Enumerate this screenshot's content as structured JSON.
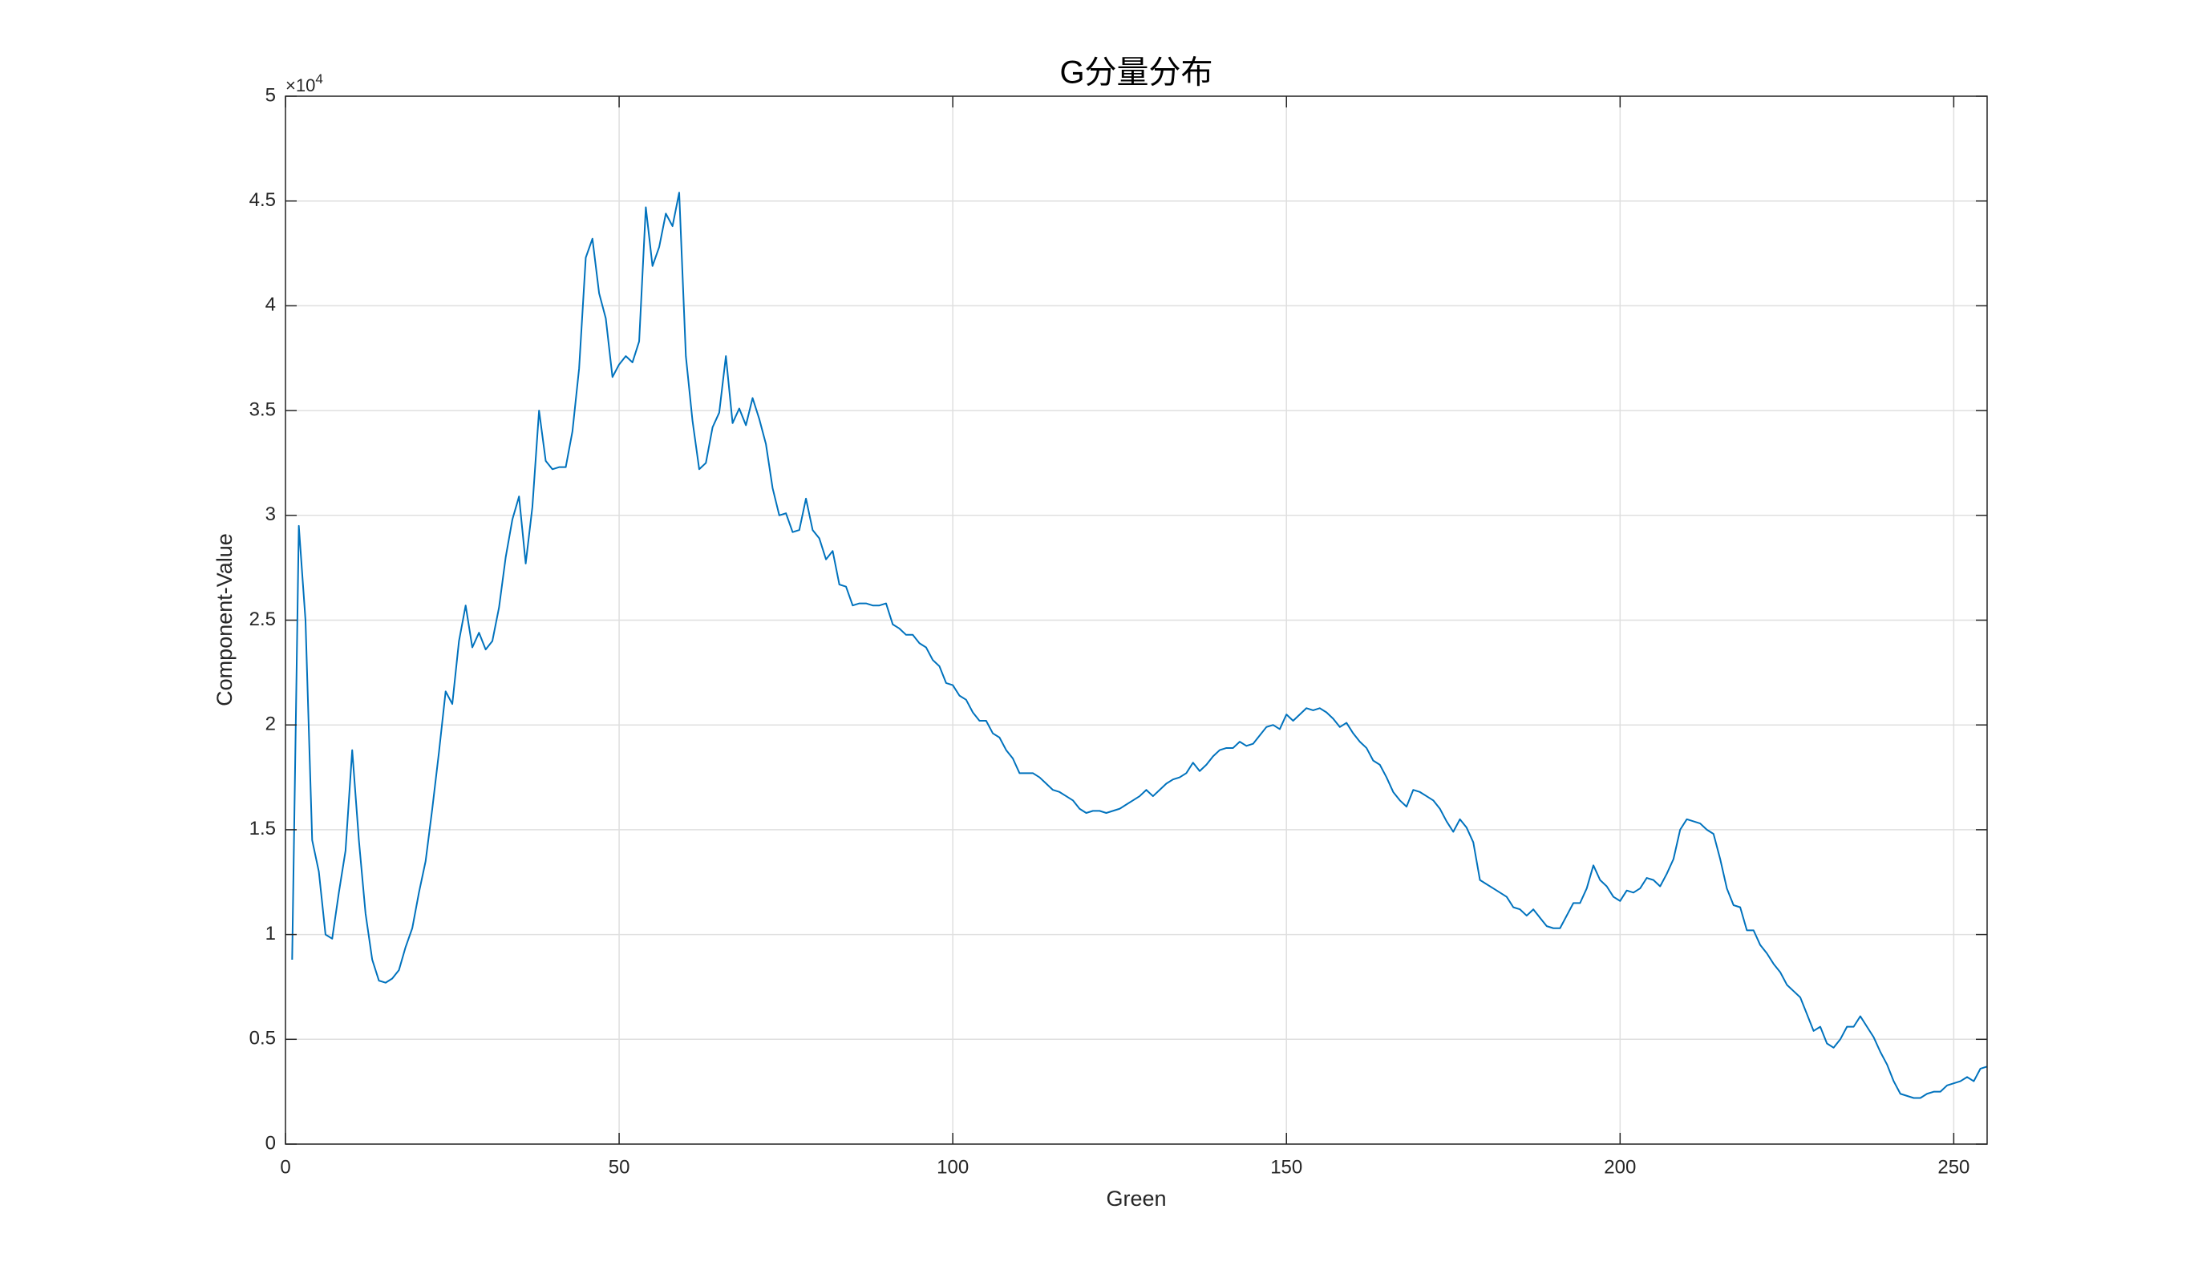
{
  "chart_data": {
    "type": "line",
    "title": "G分量分布",
    "x_label": "Green",
    "y_label": "Component-Value",
    "y_exponent": {
      "base": "×10",
      "power": "4"
    },
    "color": "#0072bd",
    "grid": true,
    "box": true,
    "xlim": [
      0,
      255
    ],
    "xticks": [
      0,
      50,
      100,
      150,
      200,
      250
    ],
    "ylim": [
      0,
      50000
    ],
    "yticks": [
      0,
      {
        "value": 5000,
        "label": "0.5"
      },
      {
        "value": 10000,
        "label": "1"
      },
      {
        "value": 15000,
        "label": "1.5"
      },
      {
        "value": 20000,
        "label": "2"
      },
      {
        "value": 25000,
        "label": "2.5"
      },
      {
        "value": 30000,
        "label": "3"
      },
      {
        "value": 35000,
        "label": "3.5"
      },
      {
        "value": 40000,
        "label": "4"
      },
      {
        "value": 45000,
        "label": "4.5"
      },
      {
        "value": 50000,
        "label": "5"
      }
    ],
    "x": [
      1,
      2,
      3,
      4,
      5,
      6,
      7,
      8,
      9,
      10,
      11,
      12,
      13,
      14,
      15,
      16,
      17,
      18,
      19,
      20,
      21,
      22,
      23,
      24,
      25,
      26,
      27,
      28,
      29,
      30,
      31,
      32,
      33,
      34,
      35,
      36,
      37,
      38,
      39,
      40,
      41,
      42,
      43,
      44,
      45,
      46,
      47,
      48,
      49,
      50,
      51,
      52,
      53,
      54,
      55,
      56,
      57,
      58,
      59,
      60,
      61,
      62,
      63,
      64,
      65,
      66,
      67,
      68,
      69,
      70,
      71,
      72,
      73,
      74,
      75,
      76,
      77,
      78,
      79,
      80,
      81,
      82,
      83,
      84,
      85,
      86,
      87,
      88,
      89,
      90,
      91,
      92,
      93,
      94,
      95,
      96,
      97,
      98,
      99,
      100,
      101,
      102,
      103,
      104,
      105,
      106,
      107,
      108,
      109,
      110,
      111,
      112,
      113,
      114,
      115,
      116,
      117,
      118,
      119,
      120,
      121,
      122,
      123,
      124,
      125,
      126,
      127,
      128,
      129,
      130,
      131,
      132,
      133,
      134,
      135,
      136,
      137,
      138,
      139,
      140,
      141,
      142,
      143,
      144,
      145,
      146,
      147,
      148,
      149,
      150,
      151,
      152,
      153,
      154,
      155,
      156,
      157,
      158,
      159,
      160,
      161,
      162,
      163,
      164,
      165,
      166,
      167,
      168,
      169,
      170,
      171,
      172,
      173,
      174,
      175,
      176,
      177,
      178,
      179,
      180,
      181,
      182,
      183,
      184,
      185,
      186,
      187,
      188,
      189,
      190,
      191,
      192,
      193,
      194,
      195,
      196,
      197,
      198,
      199,
      200,
      201,
      202,
      203,
      204,
      205,
      206,
      207,
      208,
      209,
      210,
      211,
      212,
      213,
      214,
      215,
      216,
      217,
      218,
      219,
      220,
      221,
      222,
      223,
      224,
      225,
      226,
      227,
      228,
      229,
      230,
      231,
      232,
      233,
      234,
      235,
      236,
      237,
      238,
      239,
      240,
      241,
      242,
      243,
      244,
      245,
      246,
      247,
      248,
      249,
      250,
      251,
      252,
      253,
      254,
      255
    ],
    "values": [
      8800,
      29500,
      25000,
      14500,
      13000,
      10000,
      9800,
      12000,
      14000,
      18800,
      14500,
      11000,
      8800,
      7800,
      7700,
      7900,
      8300,
      9400,
      10300,
      12000,
      13500,
      16000,
      18700,
      21600,
      21000,
      24000,
      25700,
      23700,
      24400,
      23600,
      24000,
      25600,
      28000,
      29800,
      30900,
      27700,
      30400,
      35000,
      32600,
      32200,
      32300,
      32300,
      34000,
      37000,
      42300,
      43200,
      40600,
      39400,
      36600,
      37200,
      37600,
      37300,
      38300,
      44700,
      41900,
      42800,
      44400,
      43800,
      45400,
      37600,
      34500,
      32200,
      32500,
      34200,
      34900,
      37600,
      34400,
      35100,
      34300,
      35600,
      34600,
      33400,
      31300,
      30000,
      30100,
      29200,
      29300,
      30800,
      29300,
      28900,
      27900,
      28300,
      26700,
      26600,
      25700,
      25800,
      25800,
      25700,
      25700,
      25800,
      24800,
      24600,
      24300,
      24300,
      23900,
      23700,
      23100,
      22800,
      22000,
      21900,
      21400,
      21200,
      20600,
      20200,
      20200,
      19600,
      19400,
      18800,
      18400,
      17700,
      17700,
      17700,
      17500,
      17200,
      16900,
      16800,
      16600,
      16400,
      16000,
      15800,
      15900,
      15900,
      15800,
      15900,
      16000,
      16200,
      16400,
      16600,
      16900,
      16600,
      16900,
      17200,
      17400,
      17500,
      17700,
      18200,
      17800,
      18100,
      18500,
      18800,
      18900,
      18900,
      19200,
      19000,
      19100,
      19500,
      19900,
      20000,
      19800,
      20500,
      20200,
      20500,
      20800,
      20700,
      20800,
      20600,
      20300,
      19900,
      20100,
      19600,
      19200,
      18900,
      18300,
      18100,
      17500,
      16800,
      16400,
      16100,
      16900,
      16800,
      16600,
      16400,
      16000,
      15400,
      14900,
      15500,
      15100,
      14400,
      12600,
      12400,
      12200,
      12000,
      11800,
      11300,
      11200,
      10900,
      11200,
      10800,
      10400,
      10300,
      10300,
      10900,
      11500,
      11500,
      12200,
      13300,
      12600,
      12300,
      11800,
      11600,
      12100,
      12000,
      12200,
      12700,
      12600,
      12300,
      12900,
      13600,
      15000,
      15500,
      15400,
      15300,
      15000,
      14800,
      13600,
      12200,
      11400,
      11300,
      10200,
      10200,
      9500,
      9100,
      8600,
      8200,
      7600,
      7300,
      7000,
      6200,
      5400,
      5600,
      4800,
      4600,
      5000,
      5600,
      5600,
      6100,
      5600,
      5100,
      4400,
      3800,
      3000,
      2400,
      2300,
      2200,
      2200,
      2400,
      2500,
      2500,
      2800,
      2900,
      3000,
      3200,
      3000,
      3600,
      3700
    ]
  }
}
